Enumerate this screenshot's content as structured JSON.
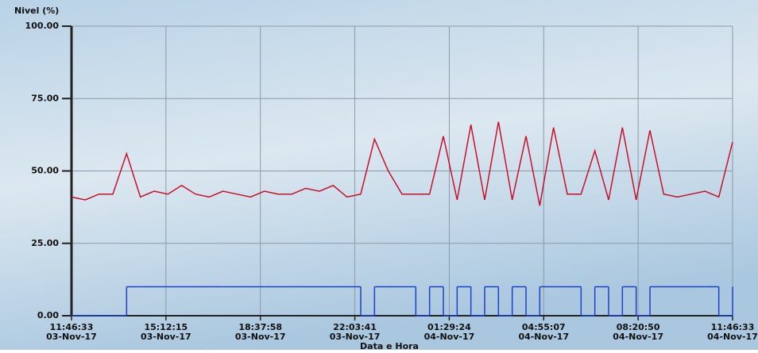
{
  "chart_data": {
    "type": "line",
    "title": "Nivel (%)",
    "x_label": "Data e Hora",
    "x": [
      "2017-11-03T11:46:33",
      "2017-11-03T12:16:33",
      "2017-11-03T12:46:33",
      "2017-11-03T13:16:33",
      "2017-11-03T13:46:33",
      "2017-11-03T14:16:33",
      "2017-11-03T14:46:33",
      "2017-11-03T15:16:33",
      "2017-11-03T15:46:33",
      "2017-11-03T16:16:33",
      "2017-11-03T16:46:33",
      "2017-11-03T17:16:33",
      "2017-11-03T17:46:33",
      "2017-11-03T18:16:33",
      "2017-11-03T18:46:33",
      "2017-11-03T19:16:33",
      "2017-11-03T19:46:33",
      "2017-11-03T20:16:33",
      "2017-11-03T20:46:33",
      "2017-11-03T21:16:33",
      "2017-11-03T21:46:33",
      "2017-11-03T22:16:33",
      "2017-11-03T22:46:33",
      "2017-11-03T23:16:33",
      "2017-11-03T23:46:33",
      "2017-11-04T00:16:33",
      "2017-11-04T00:46:33",
      "2017-11-04T01:16:33",
      "2017-11-04T01:46:33",
      "2017-11-04T02:16:33",
      "2017-11-04T02:46:33",
      "2017-11-04T03:16:33",
      "2017-11-04T03:46:33",
      "2017-11-04T04:16:33",
      "2017-11-04T04:46:33",
      "2017-11-04T05:16:33",
      "2017-11-04T05:46:33",
      "2017-11-04T06:16:33",
      "2017-11-04T06:46:33",
      "2017-11-04T07:16:33",
      "2017-11-04T07:46:33",
      "2017-11-04T08:16:33",
      "2017-11-04T08:46:33",
      "2017-11-04T09:16:33",
      "2017-11-04T09:46:33",
      "2017-11-04T10:16:33",
      "2017-11-04T10:46:33",
      "2017-11-04T11:16:33",
      "2017-11-04T11:46:33"
    ],
    "series": [
      {
        "color": "#c8102e",
        "step": false,
        "values": [
          41,
          40,
          42,
          42,
          56,
          41,
          43,
          42,
          45,
          42,
          41,
          43,
          42,
          41,
          43,
          42,
          42,
          44,
          43,
          45,
          41,
          42,
          61,
          50,
          42,
          42,
          42,
          62,
          40,
          66,
          40,
          67,
          40,
          62,
          38,
          65,
          42,
          42,
          57,
          40,
          65,
          40,
          64,
          42,
          41,
          42,
          43,
          41,
          60
        ]
      },
      {
        "color": "#1f3fc8",
        "step": true,
        "values": [
          0,
          0,
          0,
          0,
          10,
          10,
          10,
          10,
          10,
          10,
          10,
          10,
          10,
          10,
          10,
          10,
          10,
          10,
          10,
          10,
          10,
          0,
          10,
          10,
          10,
          0,
          10,
          0,
          10,
          0,
          10,
          0,
          10,
          0,
          10,
          10,
          10,
          0,
          10,
          0,
          10,
          0,
          10,
          10,
          10,
          10,
          10,
          0,
          10
        ]
      }
    ],
    "xlim": [
      "2017-11-03T11:46:33",
      "2017-11-04T11:46:33"
    ],
    "xticks": [
      {
        "value": "2017-11-03T11:46:33",
        "label": [
          "11:46:33",
          "03-Nov-17"
        ]
      },
      {
        "value": "2017-11-03T15:12:15",
        "label": [
          "15:12:15",
          "03-Nov-17"
        ]
      },
      {
        "value": "2017-11-03T18:37:58",
        "label": [
          "18:37:58",
          "03-Nov-17"
        ]
      },
      {
        "value": "2017-11-03T22:03:41",
        "label": [
          "22:03:41",
          "03-Nov-17"
        ]
      },
      {
        "value": "2017-11-04T01:29:24",
        "label": [
          "01:29:24",
          "04-Nov-17"
        ]
      },
      {
        "value": "2017-11-04T04:55:07",
        "label": [
          "04:55:07",
          "04-Nov-17"
        ]
      },
      {
        "value": "2017-11-04T08:20:50",
        "label": [
          "08:20:50",
          "04-Nov-17"
        ]
      },
      {
        "value": "2017-11-04T11:46:33",
        "label": [
          "11:46:33",
          "04-Nov-17"
        ]
      }
    ],
    "ylim": [
      0,
      100
    ],
    "yticks": [
      {
        "value": 0,
        "label": "0.00"
      },
      {
        "value": 25,
        "label": "25.00"
      },
      {
        "value": 50,
        "label": "50.00"
      },
      {
        "value": 75,
        "label": "75.00"
      },
      {
        "value": 100,
        "label": "100.00"
      }
    ],
    "grid": true
  }
}
